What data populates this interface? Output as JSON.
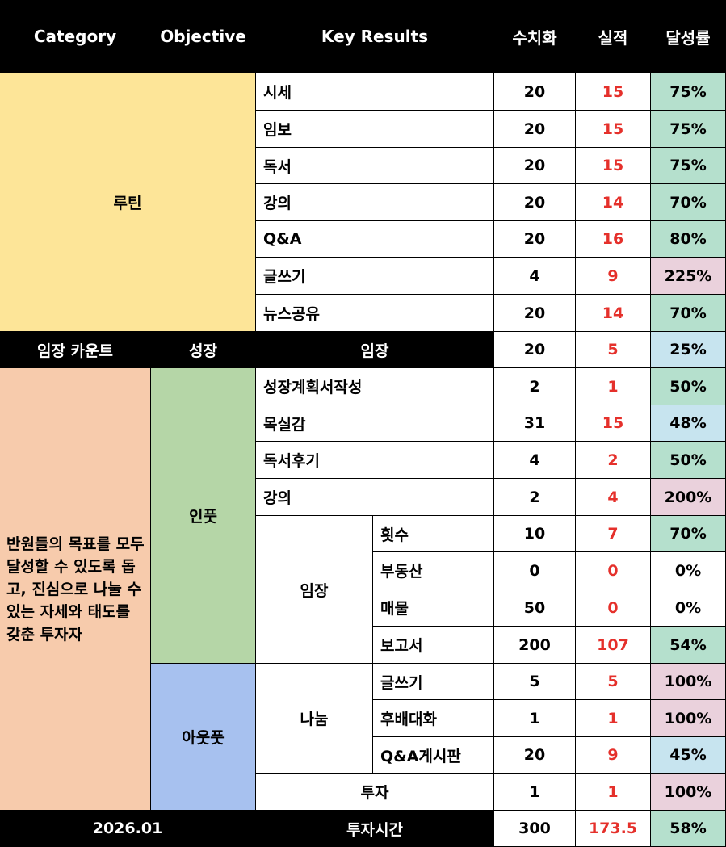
{
  "headers": [
    "Category",
    "Objective",
    "Key Results",
    "수치화",
    "실적",
    "달성률"
  ],
  "routine": {
    "category": "루틴",
    "rows": [
      {
        "kr": "시세",
        "target": "20",
        "actual": "15",
        "rate": "75%",
        "rate_color": "#b5e0cd"
      },
      {
        "kr": "임보",
        "target": "20",
        "actual": "15",
        "rate": "75%",
        "rate_color": "#b5e0cd"
      },
      {
        "kr": "독서",
        "target": "20",
        "actual": "15",
        "rate": "75%",
        "rate_color": "#b5e0cd"
      },
      {
        "kr": "강의",
        "target": "20",
        "actual": "14",
        "rate": "70%",
        "rate_color": "#b5e0cd"
      },
      {
        "kr": "Q&A",
        "target": "20",
        "actual": "16",
        "rate": "80%",
        "rate_color": "#b5e0cd"
      },
      {
        "kr": "글쓰기",
        "target": "4",
        "actual": "9",
        "rate": "225%",
        "rate_color": "#ead1dc"
      },
      {
        "kr": "뉴스공유",
        "target": "20",
        "actual": "14",
        "rate": "70%",
        "rate_color": "#b5e0cd"
      }
    ]
  },
  "imjang_count": {
    "category": "임장 카운트",
    "objective": "성장",
    "kr": "임장",
    "target": "20",
    "actual": "5",
    "rate": "25%",
    "rate_color": "#c7e4ef"
  },
  "vision": {
    "category": "반원들의 목표를 모두 달성할 수 있도록 돕고, 진심으로 나눌 수 있는 자세와 태도를 갖춘 투자자",
    "input": {
      "objective": "인풋",
      "rows": [
        {
          "kr": "성장계획서작성",
          "target": "2",
          "actual": "1",
          "rate": "50%",
          "rate_color": "#b5e0cd"
        },
        {
          "kr": "목실감",
          "target": "31",
          "actual": "15",
          "rate": "48%",
          "rate_color": "#c7e4ef"
        },
        {
          "kr": "독서후기",
          "target": "4",
          "actual": "2",
          "rate": "50%",
          "rate_color": "#b5e0cd"
        },
        {
          "kr": "강의",
          "target": "2",
          "actual": "4",
          "rate": "200%",
          "rate_color": "#ead1dc"
        }
      ],
      "imjang": {
        "group": "임장",
        "rows": [
          {
            "kr": "횟수",
            "target": "10",
            "actual": "7",
            "rate": "70%",
            "rate_color": "#b5e0cd"
          },
          {
            "kr": "부동산",
            "target": "0",
            "actual": "0",
            "rate": "0%",
            "rate_color": "#ffffff"
          },
          {
            "kr": "매물",
            "target": "50",
            "actual": "0",
            "rate": "0%",
            "rate_color": "#ffffff"
          },
          {
            "kr": "보고서",
            "target": "200",
            "actual": "107",
            "rate": "54%",
            "rate_color": "#b5e0cd"
          }
        ]
      }
    },
    "output": {
      "objective": "아웃풋",
      "sharing": {
        "group": "나눔",
        "rows": [
          {
            "kr": "글쓰기",
            "target": "5",
            "actual": "5",
            "rate": "100%",
            "rate_color": "#ead1dc"
          },
          {
            "kr": "후배대화",
            "target": "1",
            "actual": "1",
            "rate": "100%",
            "rate_color": "#ead1dc"
          },
          {
            "kr": "Q&A게시판",
            "target": "20",
            "actual": "9",
            "rate": "45%",
            "rate_color": "#c7e4ef"
          }
        ]
      },
      "invest": {
        "kr": "투자",
        "target": "1",
        "actual": "1",
        "rate": "100%",
        "rate_color": "#ead1dc"
      }
    }
  },
  "footer": {
    "category": "2026.01",
    "kr": "투자시간",
    "target": "300",
    "actual": "173.5",
    "rate": "58%",
    "rate_color": "#b5e0cd"
  }
}
